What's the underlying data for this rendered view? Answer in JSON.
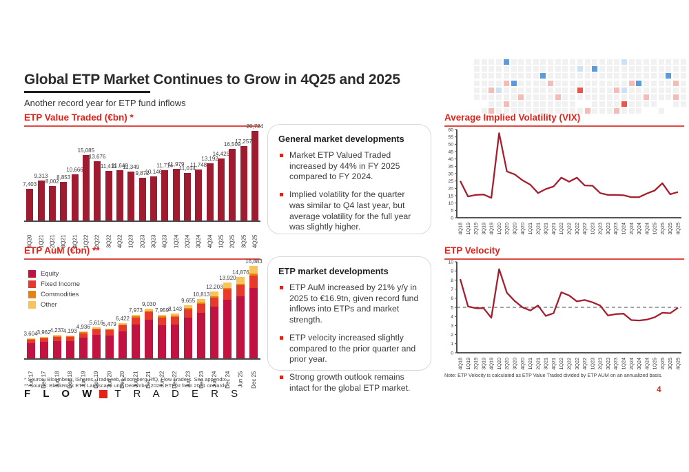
{
  "slide": {
    "title": "Global ETP Market Continues to Grow in 4Q25 and 2025",
    "subtitle": "Another record year for ETP fund inflows",
    "page_number": "4",
    "logo": {
      "word1": "F L O W",
      "word2": "T R A D E R S"
    },
    "footnotes": [
      "* Source: Bloomberg, iShares, Tradeweb, Bloomberg RfQ, Flow Traders. See appendix",
      "** Source: BlackRock ETP Landscape until December 2020. ETFGI from 2021 onwards"
    ]
  },
  "colors": {
    "accent_red": "#e2231a",
    "header_underline": "#dc4a41",
    "bar_crimson": "#9e1b30",
    "line_red": "#a51e2d",
    "equity": "#c01341",
    "fixed_income": "#e73a2c",
    "commodities": "#e8820f",
    "other": "#f9c35c",
    "axis": "#3c3c3c"
  },
  "boxes": {
    "general": {
      "title": "General market developments",
      "bullets": [
        "Market ETP Valued Traded increased by 44% in FY 2025 compared to FY 2024.",
        "Implied volatility for the quarter was similar to Q4 last year, but average volatility for the full year was slightly higher."
      ]
    },
    "etp": {
      "title": "ETP market developments",
      "bullets": [
        "ETP AuM increased by 21% y/y in 2025 to €16.9tn, given record fund inflows into ETPs and market strength.",
        "ETP velocity increased slightly compared to the prior quarter and prior year.",
        "Strong growth outlook remains intact for the global ETP market."
      ]
    }
  },
  "chart_data": [
    {
      "id": "value_traded",
      "type": "bar",
      "title": "ETP Value Traded (€bn) *",
      "categories": [
        "4Q20",
        "1Q21",
        "2Q21",
        "3Q21",
        "4Q21",
        "1Q22",
        "2Q22",
        "3Q22",
        "4Q22",
        "1Q23",
        "2Q23",
        "3Q23",
        "4Q23",
        "1Q24",
        "2Q24",
        "3Q24",
        "4Q24",
        "1Q25",
        "2Q25",
        "3Q25",
        "4Q25"
      ],
      "values": [
        7403,
        9313,
        8002,
        8853,
        10666,
        15085,
        13676,
        11411,
        11640,
        11349,
        9872,
        10146,
        11714,
        11979,
        11014,
        11748,
        13192,
        14425,
        16509,
        17257,
        20724
      ],
      "ylim": [
        0,
        20724
      ],
      "grid": false
    },
    {
      "id": "aum",
      "type": "bar",
      "stacked": true,
      "title": "ETP AuM (€bn) **",
      "categories": [
        "Jun 17",
        "Dec 17",
        "Jun 18",
        "Dec 18",
        "Jun 19",
        "Dec 19",
        "Jun 20",
        "Dec 20",
        "Jun 21",
        "Dec 21",
        "Jun 22",
        "Dec 22",
        "Jun 23",
        "Dec 23",
        "Jun 24",
        "Dec 24",
        "Jun 25",
        "Dec 25"
      ],
      "totals": [
        3604,
        3962,
        4237,
        4193,
        4936,
        5616,
        5479,
        6422,
        7973,
        9030,
        7959,
        8143,
        9655,
        10813,
        12203,
        13920,
        14876,
        16883
      ],
      "series": [
        {
          "name": "Equity",
          "values": [
            2750,
            3000,
            3200,
            3150,
            3750,
            4300,
            4150,
            4900,
            6150,
            7000,
            6050,
            6200,
            7400,
            8300,
            9400,
            10700,
            11400,
            12900
          ]
        },
        {
          "name": "Fixed Income",
          "values": [
            620,
            690,
            740,
            750,
            850,
            950,
            1000,
            1100,
            1300,
            1450,
            1350,
            1400,
            1500,
            1600,
            1700,
            1850,
            1900,
            2200
          ]
        },
        {
          "name": "Commodities",
          "values": [
            120,
            140,
            150,
            150,
            160,
            170,
            180,
            200,
            220,
            230,
            240,
            250,
            260,
            280,
            300,
            330,
            350,
            380
          ]
        },
        {
          "name": "Other",
          "values": [
            114,
            132,
            147,
            143,
            176,
            196,
            149,
            222,
            303,
            350,
            319,
            293,
            495,
            633,
            803,
            1040,
            1226,
            1403
          ]
        }
      ],
      "legend": [
        "Equity",
        "Fixed Income",
        "Commodities",
        "Other"
      ],
      "ylim": [
        0,
        16883
      ],
      "grid": false
    },
    {
      "id": "vix",
      "type": "line",
      "title": "Average Implied Volatility (VIX)",
      "x": [
        "4Q18",
        "1Q19",
        "2Q19",
        "3Q19",
        "4Q19",
        "1Q20",
        "2Q20",
        "3Q20",
        "4Q20",
        "1Q21",
        "2Q21",
        "3Q21",
        "4Q21",
        "1Q22",
        "2Q22",
        "3Q22",
        "4Q22",
        "1Q23",
        "2Q23",
        "3Q23",
        "4Q23",
        "1Q24",
        "2Q24",
        "3Q24",
        "4Q24",
        "1Q25",
        "2Q25",
        "3Q25",
        "4Q25"
      ],
      "values": [
        25,
        14.5,
        15.5,
        15.8,
        13.5,
        57.5,
        31.5,
        29.5,
        25.5,
        22.5,
        16.8,
        19.5,
        21.3,
        27.3,
        24.5,
        27.3,
        22,
        21.8,
        16.8,
        15.5,
        15.5,
        15.3,
        14,
        14,
        16.5,
        18.5,
        23.5,
        16,
        17.5
      ],
      "ylim": [
        0,
        60
      ],
      "ytick": 5,
      "grid": false,
      "legend_position": "none"
    },
    {
      "id": "velocity",
      "type": "line",
      "title": "ETP Velocity",
      "x": [
        "4Q18",
        "1Q19",
        "2Q19",
        "3Q19",
        "4Q19",
        "1Q20",
        "2Q20",
        "3Q20",
        "4Q20",
        "1Q21",
        "2Q21",
        "3Q21",
        "4Q21",
        "1Q22",
        "2Q22",
        "3Q22",
        "4Q22",
        "1Q23",
        "2Q23",
        "3Q23",
        "4Q23",
        "1Q24",
        "2Q24",
        "3Q24",
        "4Q24",
        "1Q25",
        "2Q25",
        "3Q25",
        "4Q25"
      ],
      "values": [
        8.1,
        5.1,
        4.9,
        4.9,
        3.85,
        9.2,
        6.6,
        5.7,
        5.0,
        4.65,
        5.2,
        4.05,
        4.35,
        6.65,
        6.3,
        5.65,
        5.8,
        5.55,
        5.2,
        4.1,
        4.25,
        4.3,
        3.6,
        3.55,
        3.65,
        3.9,
        4.4,
        4.35,
        4.95
      ],
      "ylim": [
        0,
        10
      ],
      "ytick": 1,
      "reference_line": 5,
      "note": "Note: ETP Velocity is calculated as ETP Value Traded divided by ETP AUM on an annualized basis.",
      "grid": false
    }
  ],
  "pixel_grid": {
    "palette": {
      ".": "#f1f1f1",
      "p": "#f5bcb6",
      "r": "#ea564a",
      "l": "#cde1f6",
      "B": "#5b9bdd"
    },
    "rows": [
      "....B...............l........",
      "..............l.B............",
      ".........B................B..",
      "....pB....p..........pB....p.",
      "..pl..........r....pl........",
      "......p....p...........p...p.",
      "  ..p.........  ....r....  ..",
      " .p............p...p...  .  "
    ]
  }
}
